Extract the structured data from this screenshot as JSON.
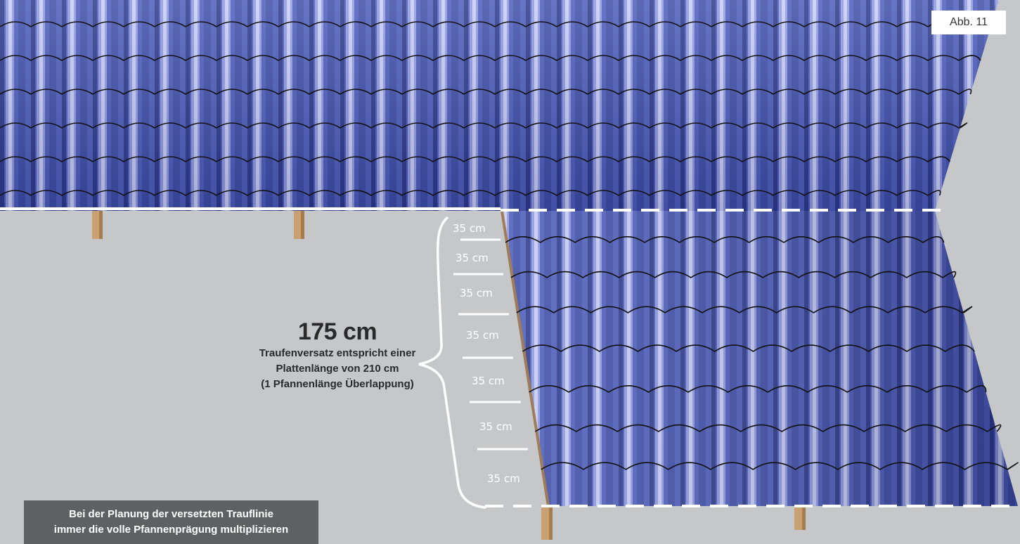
{
  "figure_label": "Abb. 11",
  "overhang": {
    "value": "175 cm",
    "description_lines": [
      "Traufenversatz entspricht einer",
      "Plattenlänge von 210 cm",
      "(1 Pfannenlänge Überlappung)"
    ]
  },
  "segments": [
    "35 cm",
    "35 cm",
    "35 cm",
    "35 cm",
    "35 cm",
    "35 cm",
    "35 cm"
  ],
  "note_lines": [
    "Bei der Planung der versetzten Trauflinie",
    "immer die volle Pfannenprägung multiplizieren"
  ],
  "colors": {
    "background": "#c6c7c9",
    "sheet": "#4a5bb5",
    "wood": "#c9a071",
    "note_box": "#5f6061"
  }
}
